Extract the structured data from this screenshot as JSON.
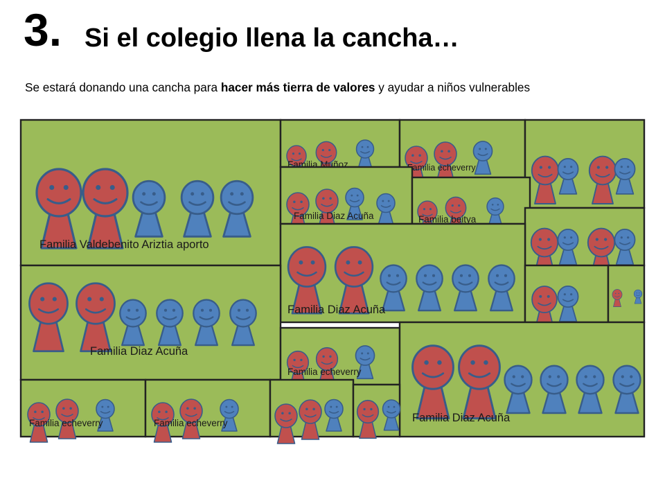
{
  "header": {
    "number": "3.",
    "title": "Si el colegio llena la cancha…"
  },
  "subtitle": {
    "before": "Se estará donando una cancha para ",
    "bold": "hacer más tierra de valores",
    "after": " y ayudar a niños vulnerables"
  },
  "colors": {
    "field": "#9bbb59",
    "parent": "#c0504d",
    "child": "#4f81bd",
    "outline": "#385d8a",
    "border": "#222222"
  },
  "families": [
    {
      "id": "f1",
      "label": "Familia Valdebenito Ariztia aporto",
      "members": [
        "parent",
        "parent",
        "child",
        "child",
        "child"
      ]
    },
    {
      "id": "f2",
      "label": "Familia Muñoz",
      "members": [
        "parent",
        "parent",
        "child"
      ]
    },
    {
      "id": "f3",
      "label": "Familia echeverry",
      "members": [
        "parent",
        "parent",
        "child"
      ]
    },
    {
      "id": "f4",
      "label": "",
      "members": [
        "parent",
        "child",
        "parent",
        "child"
      ]
    },
    {
      "id": "f5",
      "label": "Familia Diaz Acuña",
      "members": [
        "parent",
        "parent",
        "child",
        "child"
      ]
    },
    {
      "id": "f6",
      "label": "Familia beitya",
      "members": [
        "parent",
        "parent",
        "child"
      ]
    },
    {
      "id": "f7",
      "label": "",
      "members": [
        "parent",
        "child",
        "parent",
        "child"
      ]
    },
    {
      "id": "f8",
      "label": "Familia Diaz Acuña",
      "members": [
        "parent",
        "parent",
        "child",
        "child",
        "child",
        "child"
      ]
    },
    {
      "id": "f9",
      "label": "",
      "members": [
        "parent",
        "child"
      ]
    },
    {
      "id": "f10",
      "label": "",
      "members": [
        "parent",
        "child"
      ]
    },
    {
      "id": "f11",
      "label": "Familia Diaz Acuña",
      "members": [
        "parent",
        "parent",
        "child",
        "child",
        "child",
        "child"
      ]
    },
    {
      "id": "f12",
      "label": "Familia echeverry",
      "members": [
        "parent",
        "parent",
        "child"
      ]
    },
    {
      "id": "f13",
      "label": "Familia Diaz Acuña",
      "members": [
        "parent",
        "parent",
        "child",
        "child",
        "child",
        "child"
      ]
    },
    {
      "id": "f14",
      "label": "Familia echeverry",
      "members": [
        "parent",
        "parent",
        "child"
      ]
    },
    {
      "id": "f15",
      "label": "Familia echeverry",
      "members": [
        "parent",
        "parent",
        "child"
      ]
    },
    {
      "id": "f16",
      "label": "",
      "members": [
        "parent",
        "parent",
        "child"
      ]
    },
    {
      "id": "f17",
      "label": "",
      "members": [
        "parent",
        "child"
      ]
    }
  ]
}
